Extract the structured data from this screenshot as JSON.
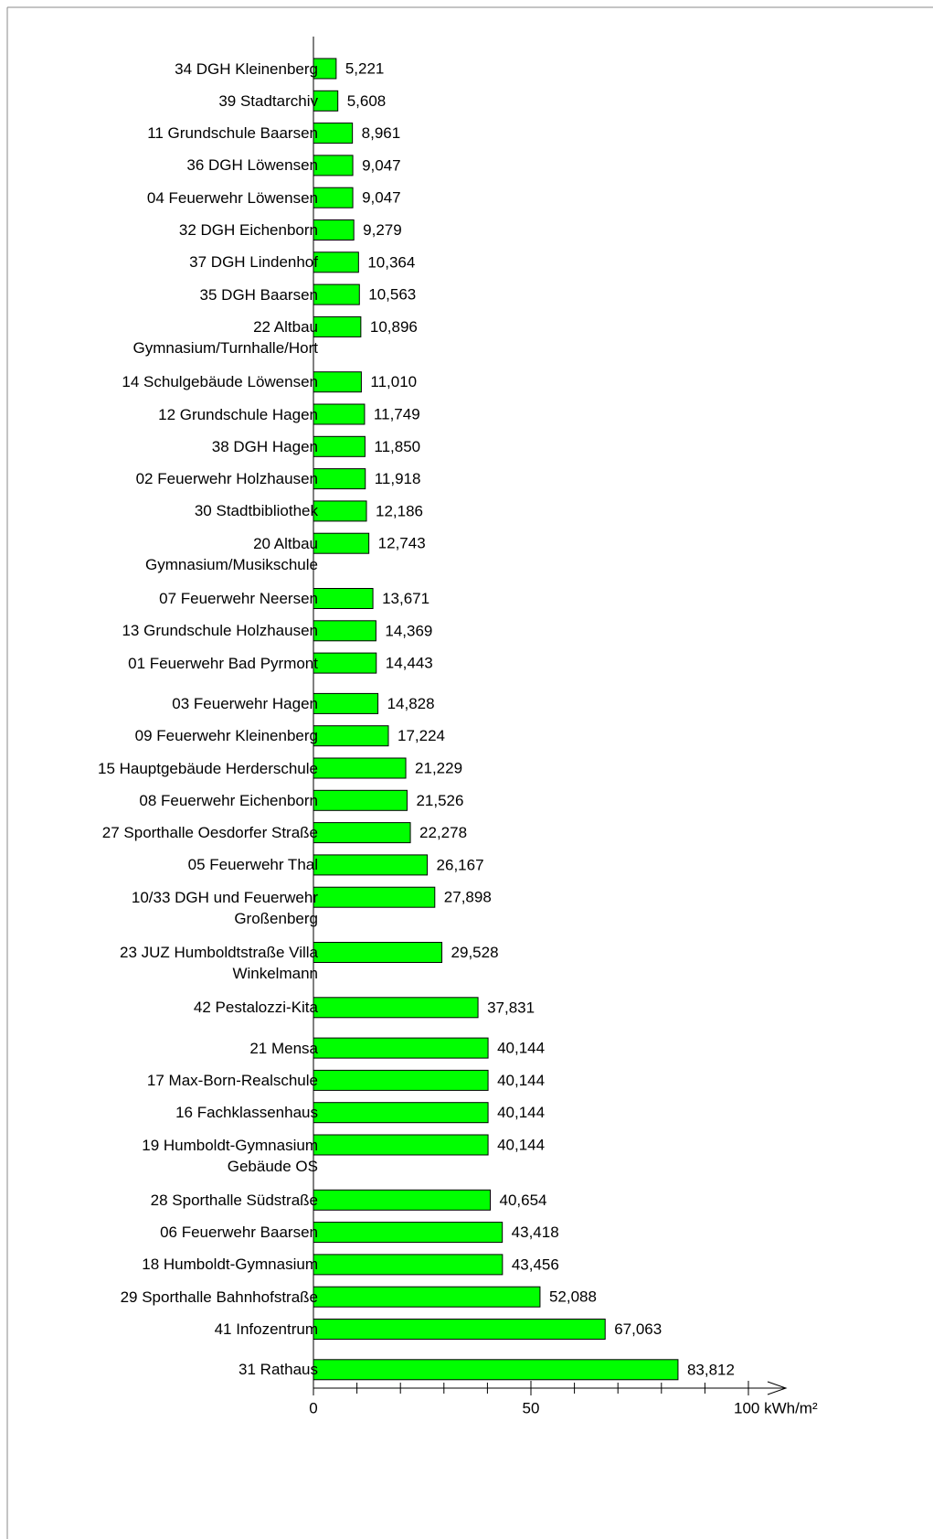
{
  "chart_data": {
    "type": "barh",
    "categories": [
      "34 DGH Kleinenberg",
      "39 Stadtarchiv",
      "11 Grundschule Baarsen",
      "36 DGH Löwensen",
      "04 Feuerwehr Löwensen",
      "32 DGH Eichenborn",
      "37 DGH Lindenhof",
      "35 DGH Baarsen",
      "22 Altbau\nGymnasium/Turnhalle/Hort",
      "14 Schulgebäude Löwensen",
      "12 Grundschule Hagen",
      "38 DGH Hagen",
      "02 Feuerwehr Holzhausen",
      "30 Stadtbibliothek",
      "20 Altbau\nGymnasium/Musikschule",
      "07 Feuerwehr Neersen",
      "13 Grundschule Holzhausen",
      "01 Feuerwehr Bad Pyrmont",
      "03 Feuerwehr Hagen",
      "09 Feuerwehr Kleinenberg",
      "15 Hauptgebäude Herderschule",
      "08 Feuerwehr Eichenborn",
      "27 Sporthalle Oesdorfer Straße",
      "05 Feuerwehr Thal",
      "10/33 DGH und Feuerwehr\nGroßenberg",
      "23 JUZ Humboldtstraße Villa\nWinkelmann",
      "42 Pestalozzi-Kita",
      "21 Mensa",
      "17 Max-Born-Realschule",
      "16 Fachklassenhaus",
      "19 Humboldt-Gymnasium\nGebäude OS",
      "28 Sporthalle Südstraße",
      "06 Feuerwehr Baarsen",
      "18 Humboldt-Gymnasium",
      "29 Sporthalle Bahnhofstraße",
      "41 Infozentrum",
      "31 Rathaus"
    ],
    "values": [
      5.221,
      5.608,
      8.961,
      9.047,
      9.047,
      9.279,
      10.364,
      10.563,
      10.896,
      11.01,
      11.749,
      11.85,
      11.918,
      12.186,
      12.743,
      13.671,
      14.369,
      14.443,
      14.828,
      17.224,
      21.229,
      21.526,
      22.278,
      26.167,
      27.898,
      29.528,
      37.831,
      40.144,
      40.144,
      40.144,
      40.144,
      40.654,
      43.418,
      43.456,
      52.088,
      67.063,
      83.812
    ],
    "value_labels": [
      "5,221",
      "5,608",
      "8,961",
      "9,047",
      "9,047",
      "9,279",
      "10,364",
      "10,563",
      "10,896",
      "11,010",
      "11,749",
      "11,850",
      "11,918",
      "12,186",
      "12,743",
      "13,671",
      "14,369",
      "14,443",
      "14,828",
      "17,224",
      "21,229",
      "21,526",
      "22,278",
      "26,167",
      "27,898",
      "29,528",
      "37,831",
      "40,144",
      "40,144",
      "40,144",
      "40,144",
      "40,654",
      "43,418",
      "43,456",
      "52,088",
      "67,063",
      "83,812"
    ],
    "color": "#00ff00",
    "xlim": [
      0,
      100
    ],
    "xticks": [
      0,
      50,
      {
        "value": 100,
        "label": "100 kWh/m²"
      }
    ],
    "xminorticks": [
      10,
      20,
      30,
      40,
      60,
      70,
      80,
      90
    ]
  }
}
